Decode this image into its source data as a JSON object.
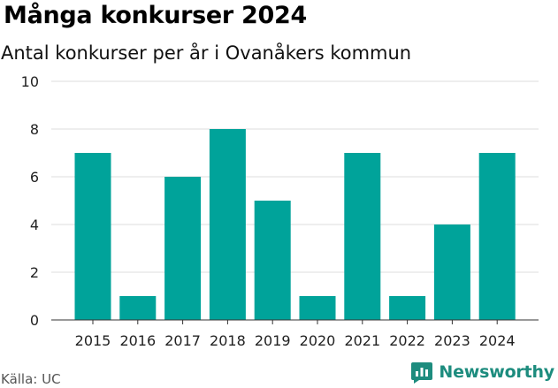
{
  "title": "Många konkurser 2024",
  "subtitle": "Antal konkurser per år i Ovanåkers kommun",
  "source": "Källa: UC",
  "brand": {
    "name": "Newsworthy",
    "icon": "newsworthy-logo-icon",
    "color": "#1d8c7e"
  },
  "colors": {
    "bar": "#00a39a",
    "grid": "#dddddd",
    "axis": "#333333"
  },
  "chart_data": {
    "type": "bar",
    "title": "Många konkurser 2024",
    "subtitle": "Antal konkurser per år i Ovanåkers kommun",
    "categories": [
      "2015",
      "2016",
      "2017",
      "2018",
      "2019",
      "2020",
      "2021",
      "2022",
      "2023",
      "2024"
    ],
    "values": [
      7,
      1,
      6,
      8,
      5,
      1,
      7,
      1,
      4,
      7
    ],
    "xlabel": "",
    "ylabel": "",
    "ylim": [
      0,
      10
    ],
    "yticks": [
      0,
      2,
      4,
      6,
      8,
      10
    ],
    "grid": true,
    "legend": "none"
  }
}
